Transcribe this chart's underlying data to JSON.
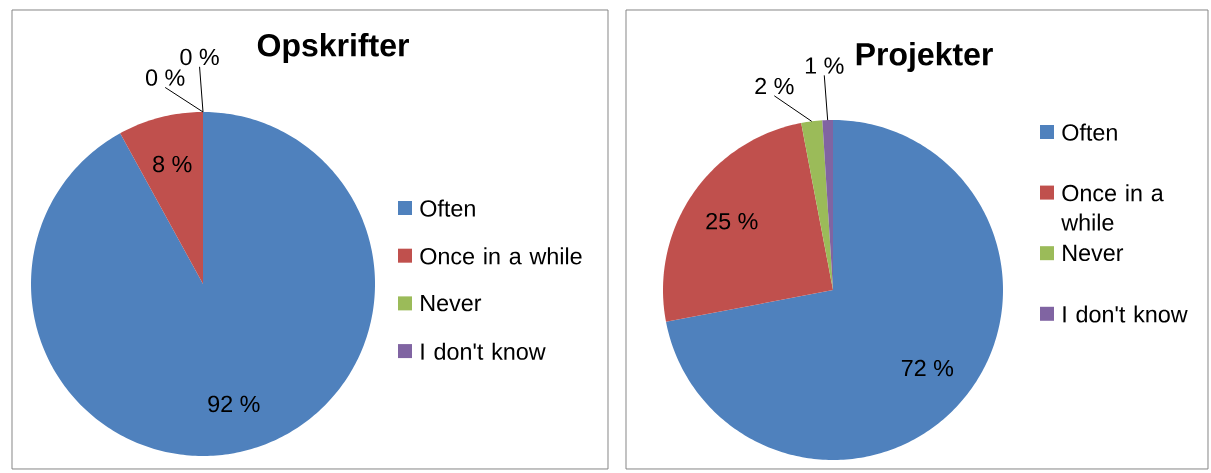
{
  "chart_data": [
    {
      "type": "pie",
      "title": "Opskrifter",
      "categories": [
        "Often",
        "Once in a while",
        "Never",
        "I don't know"
      ],
      "values": [
        92,
        8,
        0,
        0
      ],
      "colors": [
        "#4f81bd",
        "#c0504d",
        "#9bbb59",
        "#8064a2"
      ],
      "value_labels": [
        "92 %",
        "8 %",
        "0 %",
        "0 %"
      ],
      "legend": "right"
    },
    {
      "type": "pie",
      "title": "Projekter",
      "categories": [
        "Often",
        "Once in a while",
        "Never",
        "I don't know"
      ],
      "values": [
        72,
        25,
        2,
        1
      ],
      "colors": [
        "#4f81bd",
        "#c0504d",
        "#9bbb59",
        "#8064a2"
      ],
      "value_labels": [
        "72 %",
        "25 %",
        "2 %",
        "1 %"
      ],
      "legend": "right"
    }
  ]
}
